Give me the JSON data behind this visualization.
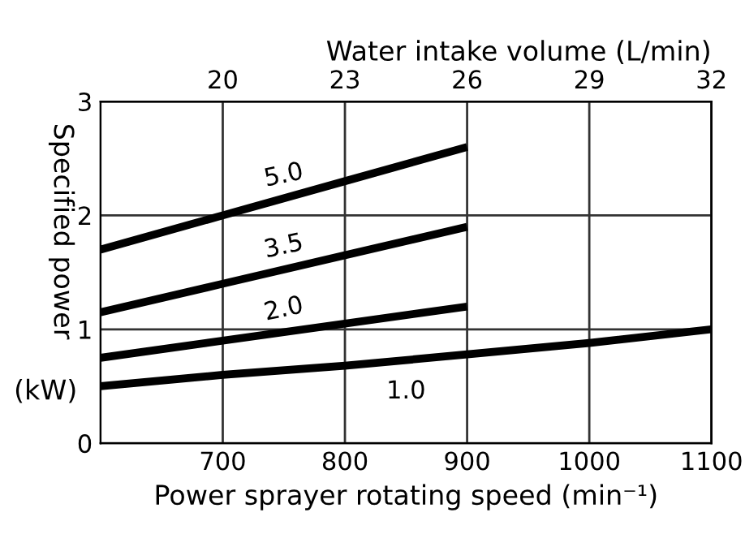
{
  "chart_data": {
    "type": "line",
    "xlabel": "Power sprayer rotating speed (min⁻¹)",
    "ylabel": "Specified power",
    "x2label": "Water intake volume (L/min)",
    "annotations": [
      "(kW)"
    ],
    "xlim": [
      600,
      1100
    ],
    "xticks": [
      700,
      800,
      900,
      1000,
      1100
    ],
    "x2lim": [
      17,
      32
    ],
    "x2ticks": [
      20,
      23,
      26,
      29,
      32
    ],
    "ylim": [
      0,
      3
    ],
    "yticks": [
      0,
      1,
      2,
      3
    ],
    "grid": true,
    "line_style": "solid",
    "marker": "none",
    "series": [
      {
        "name": "5.0",
        "color": "#000000",
        "x": [
          600,
          700,
          800,
          900
        ],
        "values": [
          1.7,
          2.0,
          2.3,
          2.6
        ]
      },
      {
        "name": "3.5",
        "color": "#000000",
        "x": [
          600,
          700,
          800,
          900
        ],
        "values": [
          1.15,
          1.4,
          1.65,
          1.9
        ]
      },
      {
        "name": "2.0",
        "color": "#000000",
        "x": [
          600,
          700,
          800,
          900
        ],
        "values": [
          0.75,
          0.9,
          1.05,
          1.2
        ]
      },
      {
        "name": "1.0",
        "color": "#000000",
        "x": [
          600,
          700,
          800,
          900,
          1000,
          1100
        ],
        "values": [
          0.5,
          0.6,
          0.68,
          0.78,
          0.88,
          1.0
        ]
      }
    ]
  }
}
